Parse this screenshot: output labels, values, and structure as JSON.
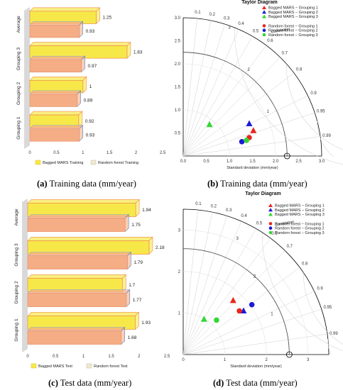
{
  "captions": [
    {
      "letter": "(a)",
      "text": " Training data (mm/year)"
    },
    {
      "letter": "(b)",
      "text": " Training data (mm/year)"
    },
    {
      "letter": "(c)",
      "text": " Test data (mm/year)"
    },
    {
      "letter": "(d)",
      "text": " Test data (mm/year)"
    }
  ],
  "colors": {
    "bagged": "#f7e84a",
    "rf": "#f5ad86",
    "red": "#e8261e",
    "blue": "#1c1cd6",
    "green": "#33d633"
  },
  "chart_data": [
    {
      "type": "bar",
      "orientation": "horizontal",
      "categories": [
        "Grouping 1",
        "Grouping 2",
        "Grouping 3",
        "Average"
      ],
      "series": [
        {
          "name": "Bagged MARS Training",
          "values": [
            0.92,
            1,
            1.83,
            1.25
          ]
        },
        {
          "name": "Random forest Training",
          "values": [
            0.93,
            0.89,
            0.97,
            0.93
          ]
        }
      ],
      "data_labels": [
        [
          "0.92",
          "1",
          "1.83",
          "1.25"
        ],
        [
          "0.93",
          "0.89",
          "0.97",
          "0.93"
        ]
      ],
      "xticks": [
        "0",
        "0.5",
        "1",
        "1.5",
        "2",
        "2.5"
      ],
      "xlim": [
        0,
        2.5
      ],
      "legend_position": "bottom"
    },
    {
      "type": "scatter",
      "subtype": "taylor-diagram",
      "title": "Taylor Diagram",
      "xlabel": "Standard deviation (mm/year)",
      "arc_label": "Correlation",
      "std_ticks": [
        "0.0",
        "0.5",
        "1.0",
        "1.5",
        "2.0",
        "2.5",
        "3.0"
      ],
      "rms_labels": [
        "1",
        "2",
        "3"
      ],
      "corr_labels": [
        "0.1",
        "0.2",
        "0.3",
        "0.4",
        "0.5",
        "0.6",
        "0.7",
        "0.8",
        "0.9",
        "0.95",
        "0.99"
      ],
      "xlim": [
        0,
        3
      ],
      "legend": [
        "Bagged MARS − Grouping 1",
        "Bagged MARS − Grouping 2",
        "Bagged MARS − Grouping 3",
        "Random forest − Grouping 1",
        "Random forest − Grouping 2",
        "Random forest − Grouping 3"
      ],
      "reference_std": 2.25,
      "points": [
        {
          "series": "Bagged MARS − Grouping 1",
          "shape": "triangle",
          "color": "red",
          "x": 1.52,
          "y": 0.55
        },
        {
          "series": "Bagged MARS − Grouping 2",
          "shape": "triangle",
          "color": "blue",
          "x": 1.43,
          "y": 0.7
        },
        {
          "series": "Bagged MARS − Grouping 3",
          "shape": "triangle",
          "color": "green",
          "x": 0.57,
          "y": 0.68
        },
        {
          "series": "Random forest − Grouping 1",
          "shape": "circle",
          "color": "red",
          "x": 1.43,
          "y": 0.4
        },
        {
          "series": "Random forest − Grouping 2",
          "shape": "circle",
          "color": "blue",
          "x": 1.27,
          "y": 0.31
        },
        {
          "series": "Random forest − Grouping 3",
          "shape": "circle",
          "color": "green",
          "x": 1.37,
          "y": 0.34
        }
      ]
    },
    {
      "type": "bar",
      "orientation": "horizontal",
      "categories": [
        "Grouping 1",
        "Grouping 2",
        "Grouping 3",
        "Average"
      ],
      "series": [
        {
          "name": "Bagged MARS Test",
          "values": [
            1.93,
            1.7,
            2.18,
            1.94
          ]
        },
        {
          "name": "Random forest Test",
          "values": [
            1.68,
            1.77,
            1.79,
            1.75
          ]
        }
      ],
      "data_labels": [
        [
          "1.93",
          "1.7",
          "2.18",
          "1.94"
        ],
        [
          "1.68",
          "1.77",
          "1.79",
          "1.75"
        ]
      ],
      "xticks": [
        "0",
        "0.5",
        "1",
        "1.5",
        "2",
        "2.5"
      ],
      "xlim": [
        0,
        2.5
      ],
      "legend_position": "bottom"
    },
    {
      "type": "scatter",
      "subtype": "taylor-diagram",
      "title": "Taylor Diagram",
      "xlabel": "Standard deviation (mm/year)",
      "arc_label": "Correlation",
      "std_ticks": [
        "0",
        "1",
        "2",
        "3"
      ],
      "rms_labels": [
        "1",
        "2",
        "3"
      ],
      "corr_labels": [
        "0.1",
        "0.2",
        "0.3",
        "0.4",
        "0.5",
        "0.6",
        "0.7",
        "0.8",
        "0.9",
        "0.95",
        "0.99"
      ],
      "xlim": [
        0,
        3.5
      ],
      "legend": [
        "Bagged MARS − Grouping 1",
        "Bagged MARS − Grouping 2",
        "Bagged MARS − Grouping 3",
        "Random forest − Grouping 1",
        "Random forest − Grouping 2",
        "Random forest − Grouping 3"
      ],
      "reference_std": 2.55,
      "points": [
        {
          "series": "Bagged MARS − Grouping 1",
          "shape": "triangle",
          "color": "red",
          "x": 1.2,
          "y": 1.3
        },
        {
          "series": "Bagged MARS − Grouping 2",
          "shape": "triangle",
          "color": "blue",
          "x": 1.45,
          "y": 1.05
        },
        {
          "series": "Bagged MARS − Grouping 3",
          "shape": "triangle",
          "color": "green",
          "x": 0.5,
          "y": 0.85
        },
        {
          "series": "Random forest − Grouping 1",
          "shape": "circle",
          "color": "red",
          "x": 1.35,
          "y": 1.05
        },
        {
          "series": "Random forest − Grouping 2",
          "shape": "circle",
          "color": "blue",
          "x": 1.65,
          "y": 1.2
        },
        {
          "series": "Random forest − Grouping 3",
          "shape": "circle",
          "color": "green",
          "x": 0.8,
          "y": 0.83
        }
      ]
    }
  ]
}
